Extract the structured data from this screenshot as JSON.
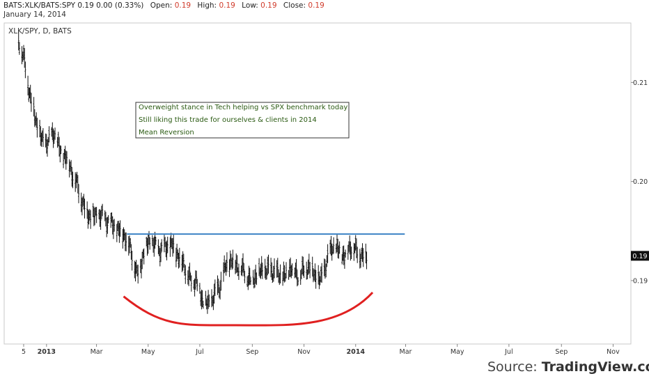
{
  "header": {
    "symbol": "BATS:XLK/BATS:SPY",
    "last": "0.19",
    "change": "0.00",
    "change_pct": "(0.33%)",
    "open_label": "Open:",
    "open": "0.19",
    "high_label": "High:",
    "high": "0.19",
    "low_label": "Low:",
    "low": "0.19",
    "close_label": "Close:",
    "close": "0.19",
    "date": "January 14, 2014"
  },
  "chart_title": "XLK/SPY, D, BATS",
  "annotations": [
    "Overweight stance in Tech helping vs SPX benchmark today",
    "Still liking this trade for ourselves & clients in 2014",
    "Mean Reversion"
  ],
  "last_price_tag": "0.19",
  "source": {
    "prefix": "Source: ",
    "brand": "TradingView.com"
  },
  "colors": {
    "resistance": "#3b82c4",
    "support_arc": "#e02020",
    "bars": "#111111"
  },
  "chart_data": {
    "type": "ohlc",
    "title": "XLK/SPY, D, BATS",
    "x_tick_labels": [
      "5",
      "2013",
      "Mar",
      "May",
      "Jul",
      "Sep",
      "Nov",
      "2014",
      "Mar",
      "May",
      "Jul",
      "Sep",
      "Nov"
    ],
    "y_tick_labels": [
      "0.21",
      "0.20",
      "0.19"
    ],
    "ylim": [
      0.1836,
      0.216
    ],
    "y_scale": "linear",
    "grid": false,
    "series": [
      {
        "x": [
          "2012-11-29",
          "2012-12-06",
          "2012-12-13",
          "2012-12-20",
          "2012-12-27",
          "2013-01-03",
          "2013-01-10",
          "2013-01-17",
          "2013-01-24",
          "2013-01-31",
          "2013-02-07",
          "2013-02-14",
          "2013-02-21",
          "2013-02-28",
          "2013-03-07",
          "2013-03-14",
          "2013-03-21",
          "2013-03-28",
          "2013-04-04",
          "2013-04-11",
          "2013-04-18",
          "2013-04-25",
          "2013-05-02",
          "2013-05-09",
          "2013-05-16",
          "2013-05-23",
          "2013-05-30",
          "2013-06-06",
          "2013-06-13",
          "2013-06-20",
          "2013-06-27",
          "2013-07-04",
          "2013-07-11",
          "2013-07-18",
          "2013-07-25",
          "2013-08-01",
          "2013-08-08",
          "2013-08-15",
          "2013-08-22",
          "2013-08-29",
          "2013-09-05",
          "2013-09-12",
          "2013-09-19",
          "2013-09-26",
          "2013-10-03",
          "2013-10-10",
          "2013-10-17",
          "2013-10-24",
          "2013-10-31",
          "2013-11-07",
          "2013-11-14",
          "2013-11-21",
          "2013-11-28",
          "2013-12-05",
          "2013-12-12",
          "2013-12-19",
          "2013-12-26",
          "2014-01-02",
          "2014-01-09",
          "2014-01-14"
        ],
        "y": [
          0.2145,
          0.212,
          0.2085,
          0.206,
          0.204,
          0.204,
          0.205,
          0.203,
          0.2025,
          0.201,
          0.1995,
          0.1975,
          0.1965,
          0.1965,
          0.1965,
          0.196,
          0.1955,
          0.195,
          0.1945,
          0.193,
          0.1905,
          0.1925,
          0.194,
          0.1935,
          0.193,
          0.1935,
          0.1935,
          0.1925,
          0.1915,
          0.19,
          0.19,
          0.188,
          0.1875,
          0.1885,
          0.1895,
          0.1915,
          0.192,
          0.1915,
          0.191,
          0.19,
          0.1905,
          0.191,
          0.191,
          0.191,
          0.1905,
          0.1905,
          0.1915,
          0.1905,
          0.191,
          0.1915,
          0.1905,
          0.19,
          0.192,
          0.1935,
          0.193,
          0.1925,
          0.1935,
          0.193,
          0.1925,
          0.1925
        ]
      }
    ],
    "resistance_level": 0.1947,
    "support_arc": {
      "from": "2013-04-02",
      "bottom": "2013-08-12",
      "to": "2014-01-21",
      "start": 0.1884,
      "low": 0.1855,
      "end": 0.1888
    },
    "annotations": [
      "Overweight stance in Tech helping vs SPX benchmark today",
      "Still liking this trade for ourselves & clients in 2014",
      "Mean Reversion"
    ]
  }
}
